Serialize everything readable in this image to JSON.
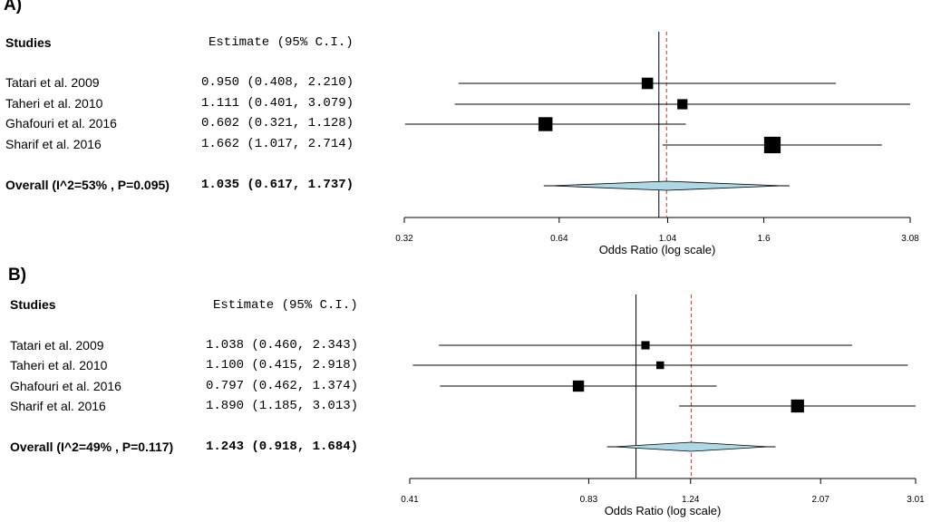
{
  "panels": [
    {
      "label": "A)",
      "header": {
        "studies": "Studies",
        "estimate": "Estimate (95% C.I.)"
      },
      "studies": [
        {
          "name": "Tatari et al. 2009",
          "estimate_text": "0.950 (0.408, 2.210)"
        },
        {
          "name": "Taheri et al. 2010",
          "estimate_text": "1.111 (0.401, 3.079)"
        },
        {
          "name": "Ghafouri et al. 2016",
          "estimate_text": "0.602 (0.321, 1.128)"
        },
        {
          "name": "Sharif et al. 2016",
          "estimate_text": "1.662 (1.017, 2.714)"
        }
      ],
      "overall": {
        "name": "Overall (I^2=53% , P=0.095)",
        "estimate_text": "1.035 (0.617, 1.737)"
      },
      "xlabel": "Odds Ratio (log scale)",
      "ticks": [
        "0.32",
        "0.64",
        "1.04",
        "1.6",
        "3.08"
      ]
    },
    {
      "label": "B)",
      "header": {
        "studies": "Studies",
        "estimate": "Estimate (95% C.I.)"
      },
      "studies": [
        {
          "name": "Tatari et al. 2009",
          "estimate_text": "1.038 (0.460, 2.343)"
        },
        {
          "name": "Taheri et al. 2010",
          "estimate_text": "1.100 (0.415, 2.918)"
        },
        {
          "name": "Ghafouri et al. 2016",
          "estimate_text": "0.797 (0.462, 1.374)"
        },
        {
          "name": "Sharif et al. 2016",
          "estimate_text": "1.890 (1.185, 3.013)"
        }
      ],
      "overall": {
        "name": "Overall (I^2=49% , P=0.117)",
        "estimate_text": "1.243 (0.918, 1.684)"
      },
      "xlabel": "Odds Ratio (log scale)",
      "ticks": [
        "0.41",
        "0.83",
        "1.24",
        "2.07",
        "3.01"
      ]
    }
  ],
  "chart_data": [
    {
      "type": "forest",
      "panel": "A)",
      "scale": "log",
      "xlim": [
        0.32,
        3.08
      ],
      "tick_values": [
        0.32,
        0.64,
        1.04,
        1.6,
        3.08
      ],
      "tick_labels": [
        "0.32",
        "0.64",
        "1.04",
        "1.6",
        "3.08"
      ],
      "xlabel": "Odds Ratio (log scale)",
      "null_line": 1,
      "pooled_line": 1.035,
      "studies": [
        {
          "name": "Tatari et al. 2009",
          "or": 0.95,
          "lo": 0.408,
          "hi": 2.21,
          "weight": 0.9
        },
        {
          "name": "Taheri et al. 2010",
          "or": 1.111,
          "lo": 0.401,
          "hi": 3.079,
          "weight": 0.8
        },
        {
          "name": "Ghafouri et al. 2016",
          "or": 0.602,
          "lo": 0.321,
          "hi": 1.128,
          "weight": 1.1
        },
        {
          "name": "Sharif et al. 2016",
          "or": 1.662,
          "lo": 1.017,
          "hi": 2.714,
          "weight": 1.3
        }
      ],
      "overall": {
        "or": 1.035,
        "lo": 0.617,
        "hi": 1.737
      },
      "colors": {
        "diamond": "#add8e6",
        "pooled_line": "#e8311f",
        "marks": "#000000"
      }
    },
    {
      "type": "forest",
      "panel": "B)",
      "scale": "log",
      "xlim": [
        0.41,
        3.01
      ],
      "tick_values": [
        0.41,
        0.83,
        1.24,
        2.07,
        3.01
      ],
      "tick_labels": [
        "0.41",
        "0.83",
        "1.24",
        "2.07",
        "3.01"
      ],
      "xlabel": "Odds Ratio (log scale)",
      "null_line": 1,
      "pooled_line": 1.243,
      "studies": [
        {
          "name": "Tatari et al. 2009",
          "or": 1.038,
          "lo": 0.46,
          "hi": 2.343,
          "weight": 0.7
        },
        {
          "name": "Taheri et al. 2010",
          "or": 1.1,
          "lo": 0.415,
          "hi": 2.918,
          "weight": 0.65
        },
        {
          "name": "Ghafouri et al. 2016",
          "or": 0.797,
          "lo": 0.462,
          "hi": 1.374,
          "weight": 0.95
        },
        {
          "name": "Sharif et al. 2016",
          "or": 1.89,
          "lo": 1.185,
          "hi": 3.013,
          "weight": 1.1
        }
      ],
      "overall": {
        "or": 1.243,
        "lo": 0.918,
        "hi": 1.684
      },
      "colors": {
        "diamond": "#add8e6",
        "pooled_line": "#e8311f",
        "marks": "#000000"
      }
    }
  ]
}
